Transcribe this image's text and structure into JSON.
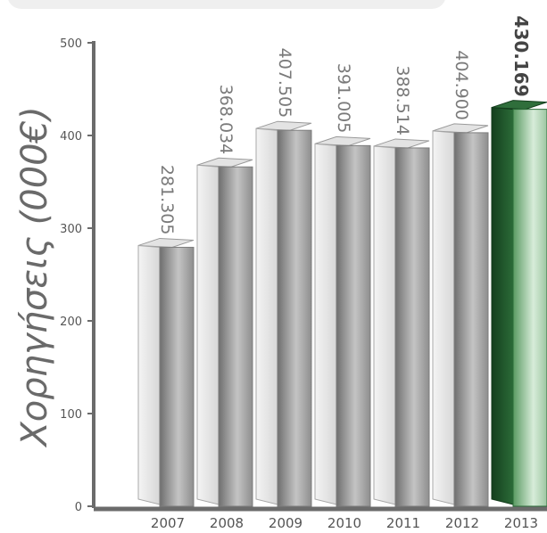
{
  "chart_data": {
    "type": "bar",
    "categories": [
      "2007",
      "2008",
      "2009",
      "2010",
      "2011",
      "2012",
      "2013"
    ],
    "values": [
      281.305,
      368.034,
      407.505,
      391.005,
      388.514,
      404.9,
      430.169
    ],
    "value_labels": [
      "281.305",
      "368.034",
      "407.505",
      "391.005",
      "388.514",
      "404.900",
      "430.169"
    ],
    "highlight_category": "2013",
    "ylabel": "Χορηγήσεις (000€)",
    "ylim": [
      0,
      500
    ],
    "yticks": [
      0,
      100,
      200,
      300,
      400,
      500
    ],
    "grid": false,
    "colors": {
      "bar_face_light": "#f2f2f2",
      "bar_side_dark": "#8c8c8c",
      "highlight_face": "#1f5a2c",
      "highlight_side": "#9fc7a3",
      "axis": "#6b6b6b"
    }
  }
}
